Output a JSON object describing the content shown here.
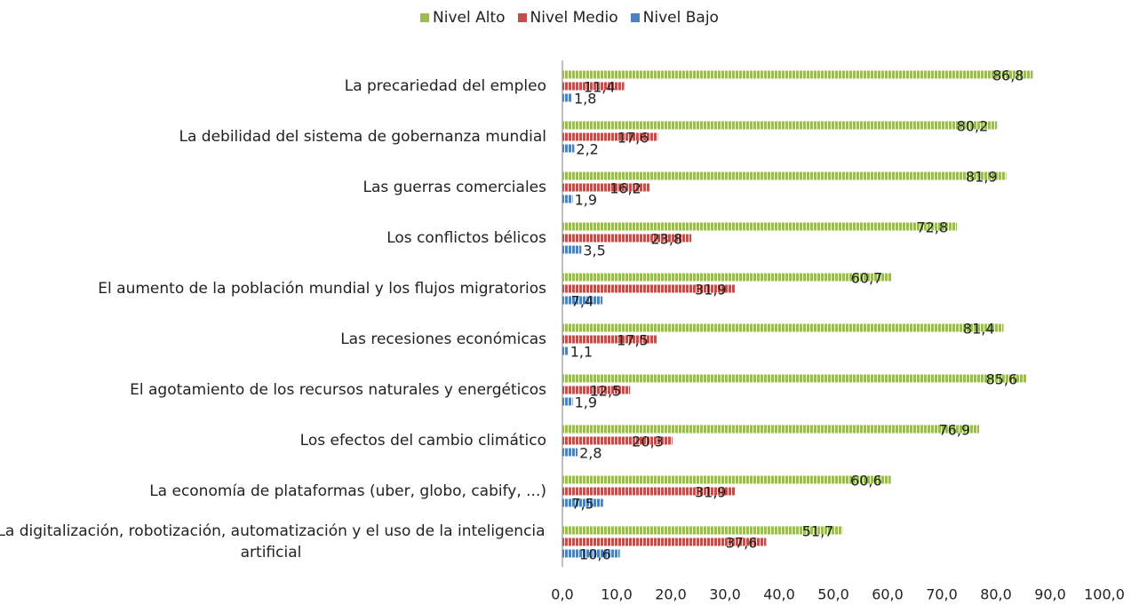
{
  "chart_data": {
    "type": "bar",
    "orientation": "horizontal",
    "categories": [
      "La precariedad del empleo",
      "La debilidad del sistema de gobernanza mundial",
      "Las guerras comerciales",
      "Los conflictos bélicos",
      "El aumento de la población mundial y los flujos migratorios",
      "Las recesiones económicas",
      "El agotamiento de los recursos naturales y energéticos",
      "Los efectos del cambio climático",
      "La economía de plataformas (uber, globo, cabify, ...)",
      "La digitalización, robotización, automatización y el uso de la inteligencia artificial"
    ],
    "series": [
      {
        "name": "Nivel Alto",
        "color": "#9bbb59",
        "values": [
          86.8,
          80.2,
          81.9,
          72.8,
          60.7,
          81.4,
          85.6,
          76.9,
          60.6,
          51.7
        ],
        "value_labels": [
          "86,8",
          "80,2",
          "81,9",
          "72,8",
          "60,7",
          "81,4",
          "85,6",
          "76,9",
          "60,6",
          "51,7"
        ]
      },
      {
        "name": "Nivel Medio",
        "color": "#c0504d",
        "values": [
          11.4,
          17.6,
          16.2,
          23.8,
          31.9,
          17.5,
          12.5,
          20.3,
          31.9,
          37.6
        ],
        "value_labels": [
          "11,4",
          "17,6",
          "16,2",
          "23,8",
          "31,9",
          "17,5",
          "12,5",
          "20,3",
          "31,9",
          "37,6"
        ]
      },
      {
        "name": "Nivel Bajo",
        "color": "#4f81bd",
        "values": [
          1.8,
          2.2,
          1.9,
          3.5,
          7.4,
          1.1,
          1.9,
          2.8,
          7.5,
          10.6
        ],
        "value_labels": [
          "1,8",
          "2,2",
          "1,9",
          "3,5",
          "7,4",
          "1,1",
          "1,9",
          "2,8",
          "7,5",
          "10,6"
        ]
      }
    ],
    "xlim": [
      0,
      100
    ],
    "xticks": [
      {
        "value": 0,
        "label": "0,0"
      },
      {
        "value": 10,
        "label": "10,0"
      },
      {
        "value": 20,
        "label": "20,0"
      },
      {
        "value": 30,
        "label": "30,0"
      },
      {
        "value": 40,
        "label": "40,0"
      },
      {
        "value": 50,
        "label": "50,0"
      },
      {
        "value": 60,
        "label": "60,0"
      },
      {
        "value": 70,
        "label": "70,0"
      },
      {
        "value": 80,
        "label": "80,0"
      },
      {
        "value": 90,
        "label": "90,0"
      },
      {
        "value": 100,
        "label": "100,0"
      }
    ],
    "legend": "top",
    "grid": false
  }
}
